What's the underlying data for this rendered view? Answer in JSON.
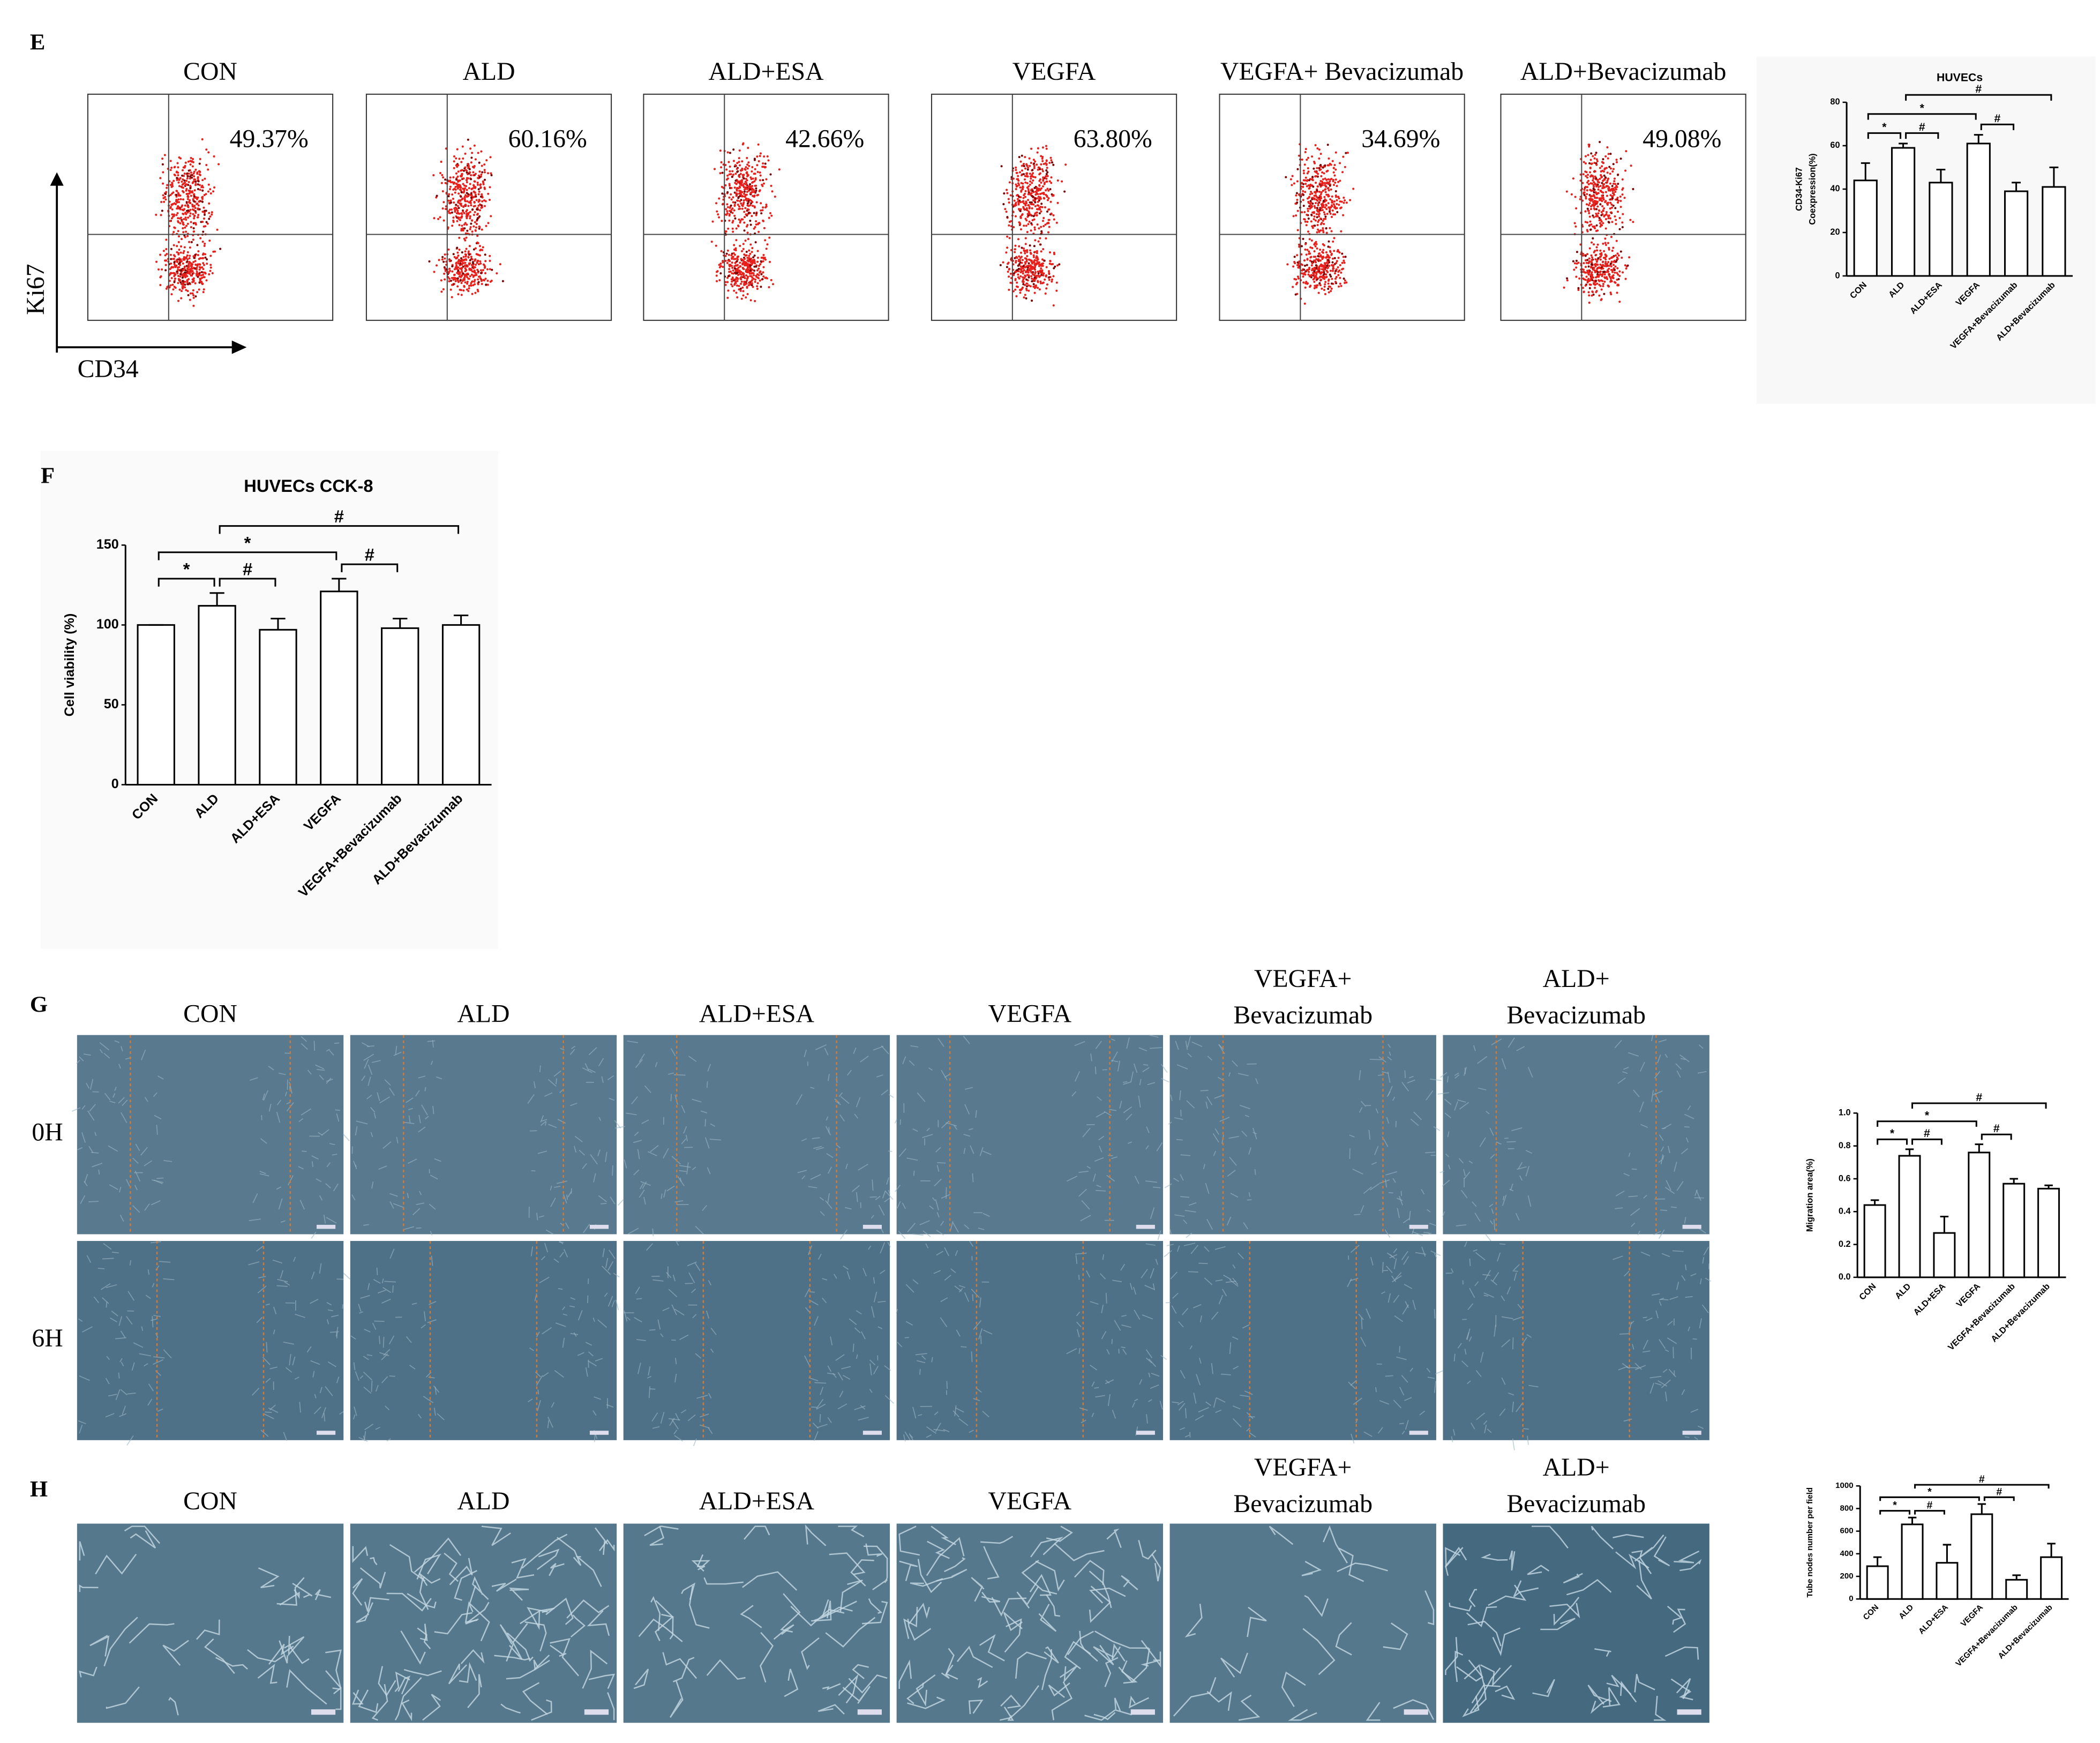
{
  "panels": {
    "E": {
      "letter": "E",
      "groups": [
        "CON",
        "ALD",
        "ALD+ESA",
        "VEGFA",
        "VEGFA+ Bevacizumab",
        "ALD+Bevacizumab"
      ],
      "percentages": [
        "49.37%",
        "60.16%",
        "42.66%",
        "63.80%",
        "34.69%",
        "49.08%"
      ],
      "y_label": "Ki67",
      "x_label": "CD34"
    },
    "F": {
      "letter": "F"
    },
    "G": {
      "letter": "G",
      "groups": [
        [
          "CON"
        ],
        [
          "ALD"
        ],
        [
          "ALD+ESA"
        ],
        [
          "VEGFA"
        ],
        [
          "VEGFA+",
          "Bevacizumab"
        ],
        [
          "ALD+",
          "Bevacizumab"
        ]
      ],
      "rows": [
        "0H",
        "6H"
      ]
    },
    "H": {
      "letter": "H",
      "groups": [
        [
          "CON"
        ],
        [
          "ALD"
        ],
        [
          "ALD+ESA"
        ],
        [
          "VEGFA"
        ],
        [
          "VEGFA+",
          "Bevacizumab"
        ],
        [
          "ALD+",
          "Bevacizumab"
        ]
      ]
    }
  },
  "chart_data": [
    {
      "type": "bar",
      "title": "HUVECs",
      "ylabel": [
        "CD34-Ki67",
        "Coexpression(%)"
      ],
      "categories": [
        "CON",
        "ALD",
        "ALD+ESA",
        "VEGFA",
        "VEGFA+Bevacizumab",
        "ALD+Bevacizumab"
      ],
      "values": [
        44,
        59,
        43,
        61,
        39,
        41
      ],
      "errors": [
        8,
        2,
        6,
        4,
        4,
        9
      ],
      "ylim": [
        0,
        80
      ],
      "yticks": [
        0,
        20,
        40,
        60,
        80
      ],
      "color": "#ffffff",
      "comparisons": [
        {
          "from": 0,
          "to": 1,
          "label": "*"
        },
        {
          "from": 1,
          "to": 2,
          "label": "#"
        },
        {
          "from": 0,
          "to": 3,
          "label": "*"
        },
        {
          "from": 3,
          "to": 4,
          "label": "#"
        },
        {
          "from": 1,
          "to": 5,
          "label": "#"
        }
      ]
    },
    {
      "type": "bar",
      "title": "HUVECs CCK-8",
      "ylabel": [
        "Cell viability (%)"
      ],
      "categories": [
        "CON",
        "ALD",
        "ALD+ESA",
        "VEGFA",
        "VEGFA+Bevacizumab",
        "ALD+Bevacizumab"
      ],
      "values": [
        100,
        112,
        97,
        121,
        98,
        100
      ],
      "errors": [
        0,
        8,
        7,
        8,
        6,
        6
      ],
      "ylim": [
        0,
        150
      ],
      "yticks": [
        0,
        50,
        100,
        150
      ],
      "color": "#ffffff",
      "comparisons": [
        {
          "from": 0,
          "to": 1,
          "label": "*"
        },
        {
          "from": 1,
          "to": 2,
          "label": "#"
        },
        {
          "from": 0,
          "to": 3,
          "label": "*"
        },
        {
          "from": 3,
          "to": 4,
          "label": "#"
        },
        {
          "from": 1,
          "to": 5,
          "label": "#"
        }
      ]
    },
    {
      "type": "bar",
      "ylabel": [
        "Migration area(%)"
      ],
      "categories": [
        "CON",
        "ALD",
        "ALD+ESA",
        "VEGFA",
        "VEGFA+Bevacizumab",
        "ALD+Bevacizumab"
      ],
      "values": [
        0.44,
        0.74,
        0.27,
        0.76,
        0.57,
        0.54
      ],
      "errors": [
        0.03,
        0.04,
        0.1,
        0.05,
        0.03,
        0.02
      ],
      "ylim": [
        0,
        1
      ],
      "yticks": [
        {
          "value": 0,
          "label": "0.0"
        },
        0.2,
        0.4,
        0.6,
        0.8,
        {
          "value": 1,
          "label": "1.0"
        }
      ],
      "color": "#ffffff",
      "comparisons": [
        {
          "from": 0,
          "to": 1,
          "label": "*"
        },
        {
          "from": 1,
          "to": 2,
          "label": "#"
        },
        {
          "from": 0,
          "to": 3,
          "label": "*"
        },
        {
          "from": 3,
          "to": 4,
          "label": "#"
        },
        {
          "from": 1,
          "to": 5,
          "label": "#"
        }
      ]
    },
    {
      "type": "bar",
      "ylabel": [
        "Tube nodes number per field"
      ],
      "categories": [
        "CON",
        "ALD",
        "ALD+ESA",
        "VEGFA",
        "VEGFA+Bevacizumab",
        "ALD+Bevacizumab"
      ],
      "values": [
        290,
        660,
        320,
        750,
        170,
        370
      ],
      "errors": [
        80,
        60,
        160,
        90,
        40,
        120
      ],
      "ylim": [
        0,
        1000
      ],
      "yticks": [
        0,
        200,
        400,
        600,
        800,
        1000
      ],
      "color": "#ffffff",
      "comparisons": [
        {
          "from": 0,
          "to": 1,
          "label": "*"
        },
        {
          "from": 1,
          "to": 2,
          "label": "#"
        },
        {
          "from": 0,
          "to": 3,
          "label": "*"
        },
        {
          "from": 3,
          "to": 4,
          "label": "#"
        },
        {
          "from": 1,
          "to": 5,
          "label": "#"
        }
      ]
    }
  ]
}
